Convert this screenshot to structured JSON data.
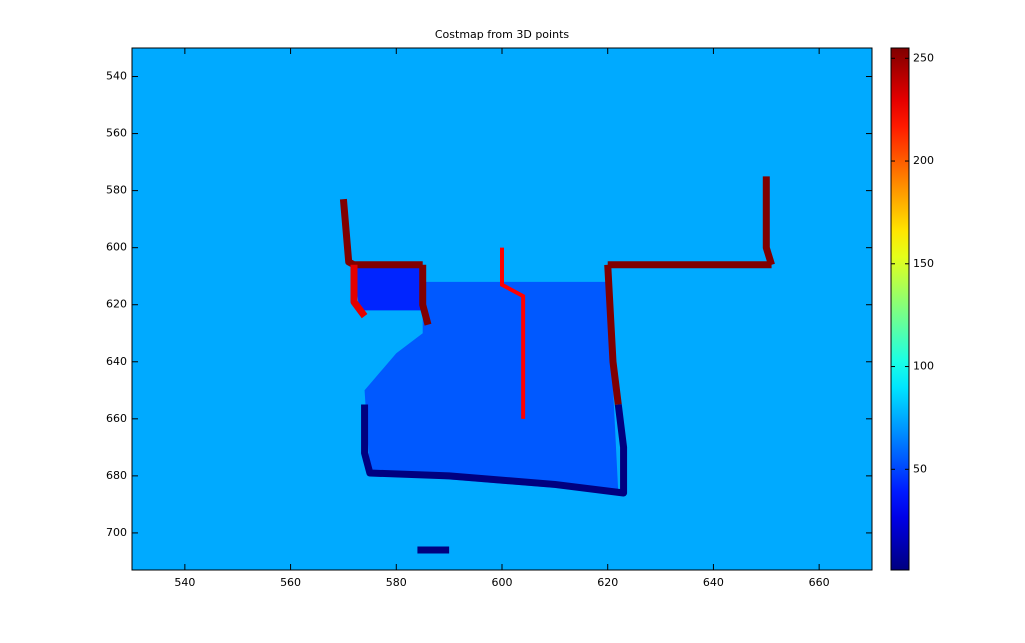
{
  "chart_data": {
    "type": "heatmap",
    "title": "Costmap from 3D points",
    "colormap": "jet",
    "xlim": [
      530,
      670
    ],
    "ylim": [
      530,
      713
    ],
    "y_reversed": true,
    "xticks": [
      540,
      560,
      580,
      600,
      620,
      640,
      660
    ],
    "yticks": [
      540,
      560,
      580,
      600,
      620,
      640,
      660,
      680,
      700
    ],
    "clim": [
      1,
      255
    ],
    "cticks": [
      50,
      100,
      150,
      200,
      250
    ],
    "layers": [
      {
        "kind": "fill",
        "value": 75
      },
      {
        "kind": "polygon",
        "value": 55,
        "x": [
          585,
          620,
          622,
          575,
          574,
          580,
          585
        ],
        "y": [
          612,
          612,
          686,
          679,
          650,
          637,
          630
        ]
      },
      {
        "kind": "polygon",
        "value": 42,
        "x": [
          572,
          585,
          585,
          573
        ],
        "y": [
          607,
          607,
          622,
          622
        ]
      },
      {
        "kind": "line",
        "value": 255,
        "x": [
          570,
          571,
          572,
          585
        ],
        "y": [
          583,
          605,
          606,
          606
        ]
      },
      {
        "kind": "line",
        "value": 255,
        "x": [
          585,
          585,
          586
        ],
        "y": [
          606,
          620,
          627
        ]
      },
      {
        "kind": "line",
        "value": 230,
        "x": [
          572,
          572,
          574
        ],
        "y": [
          606,
          619,
          624
        ]
      },
      {
        "kind": "line",
        "value": 255,
        "x": [
          620,
          621,
          622
        ],
        "y": [
          606,
          640,
          655
        ]
      },
      {
        "kind": "line",
        "value": 255,
        "x": [
          620,
          651
        ],
        "y": [
          606,
          606
        ]
      },
      {
        "kind": "line",
        "value": 255,
        "x": [
          650,
          650,
          651
        ],
        "y": [
          575,
          600,
          606
        ]
      },
      {
        "kind": "line",
        "value": 1,
        "x": [
          574,
          574,
          575,
          590,
          610,
          623,
          623,
          622
        ],
        "y": [
          655,
          672,
          679,
          680,
          683,
          686,
          670,
          655
        ]
      },
      {
        "kind": "line",
        "value": 1,
        "x": [
          584,
          590
        ],
        "y": [
          706,
          706
        ]
      }
    ],
    "path": {
      "color": "#ff0000",
      "x": [
        600,
        600,
        604,
        604
      ],
      "y": [
        600,
        613,
        617,
        660
      ]
    }
  }
}
